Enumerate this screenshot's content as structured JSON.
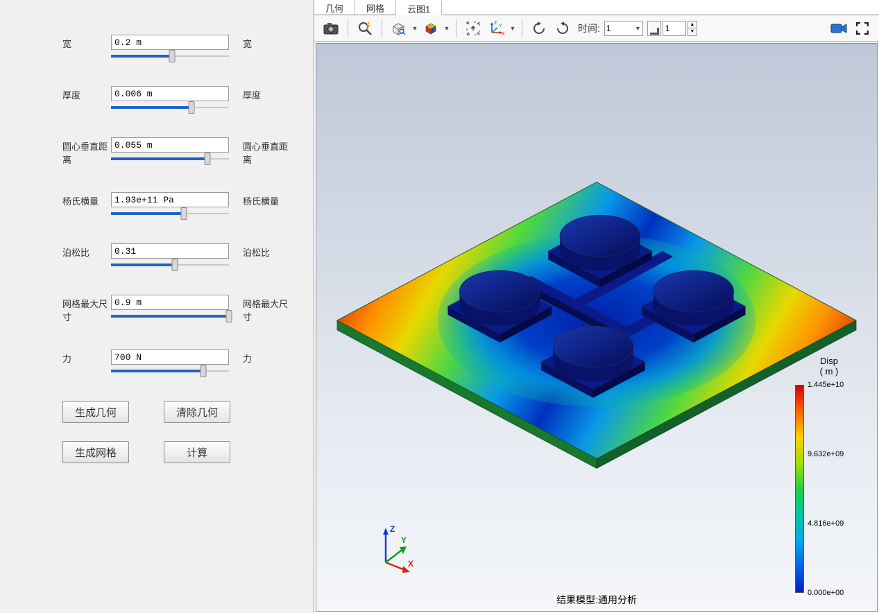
{
  "params": [
    {
      "label_left": "宽",
      "value": "0.2 m",
      "label_right": "宽",
      "fill": 52
    },
    {
      "label_left": "厚度",
      "value": "0.006 m",
      "label_right": "厚度",
      "fill": 68
    },
    {
      "label_left": "圆心垂直距离",
      "value": "0.055 m",
      "label_right": "圆心垂直距离",
      "fill": 82
    },
    {
      "label_left": "杨氏横量",
      "value": "1.93e+11 Pa",
      "label_right": "杨氏横量",
      "fill": 62
    },
    {
      "label_left": "泊松比",
      "value": "0.31",
      "label_right": "泊松比",
      "fill": 54
    },
    {
      "label_left": "网格最大尺寸",
      "value": "0.9 m",
      "label_right": "网格最大尺寸",
      "fill": 100
    },
    {
      "label_left": "力",
      "value": "700 N",
      "label_right": "力",
      "fill": 78
    }
  ],
  "buttons": {
    "gen_geom": "生成几何",
    "clear_geom": "清除几何",
    "gen_mesh": "生成网格",
    "compute": "计算"
  },
  "tabs": [
    {
      "label": "几何",
      "active": false
    },
    {
      "label": "网格",
      "active": false
    },
    {
      "label": "云图1",
      "active": true
    }
  ],
  "toolbar": {
    "time_label": "时间:",
    "time_value": "1",
    "step_value": "1"
  },
  "viewport": {
    "result_label": "结果模型:通用分析",
    "legend_title": "Disp",
    "legend_unit": "( m )",
    "legend_max": "1.445e+10",
    "legend_mid2": "9.632e+09",
    "legend_mid1": "4.816e+09",
    "legend_min": "0.000e+00",
    "axis": {
      "x": "X",
      "y": "Y",
      "z": "Z"
    },
    "plate_gradient": [
      "#d02000",
      "#ff9000",
      "#e8d800",
      "#50d840",
      "#0898e8",
      "#0030c0",
      "#0898e8",
      "#50d840",
      "#e8d800",
      "#ff9000",
      "#d02000"
    ],
    "disc_color": "#0a1a8a",
    "plate_edge": "#2a5a2a"
  }
}
